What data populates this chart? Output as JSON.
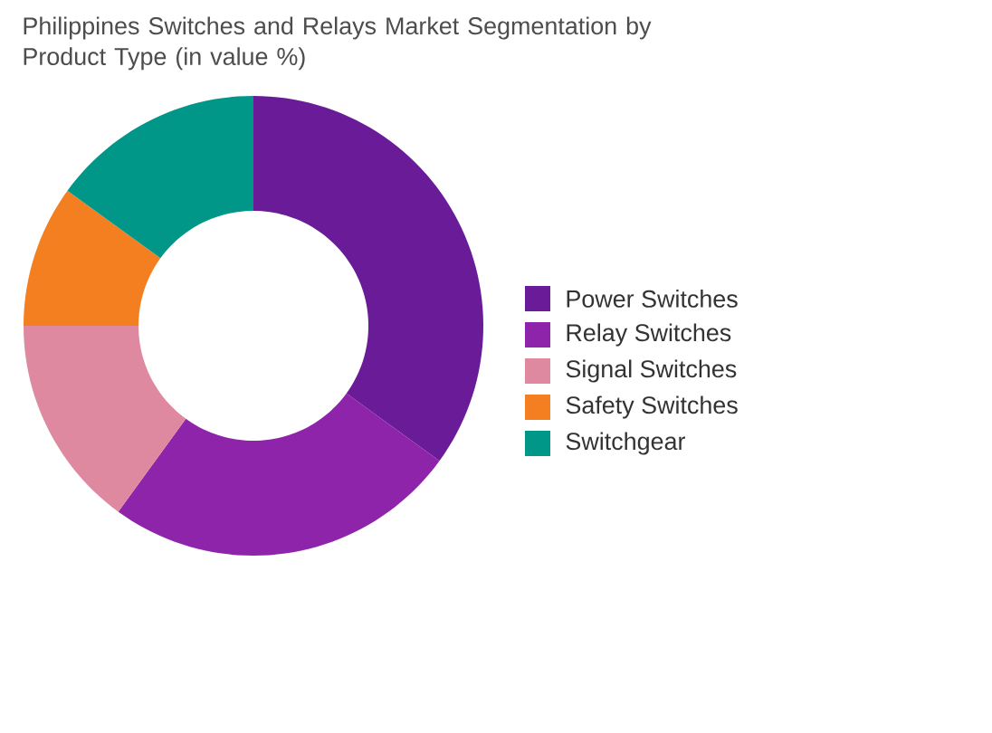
{
  "chart_data": {
    "type": "donut",
    "title": "Philippines Switches and Relays Market Segmentation by Product Type (in value %)",
    "categories": [
      "Power Switches",
      "Relay Switches",
      "Signal Switches",
      "Safety Switches",
      "Switchgear"
    ],
    "values": [
      35,
      25,
      15,
      10,
      15
    ],
    "colors": [
      "#6a1b98",
      "#8e24aa",
      "#de89a0",
      "#f47f21",
      "#009688"
    ],
    "legend": "right"
  }
}
